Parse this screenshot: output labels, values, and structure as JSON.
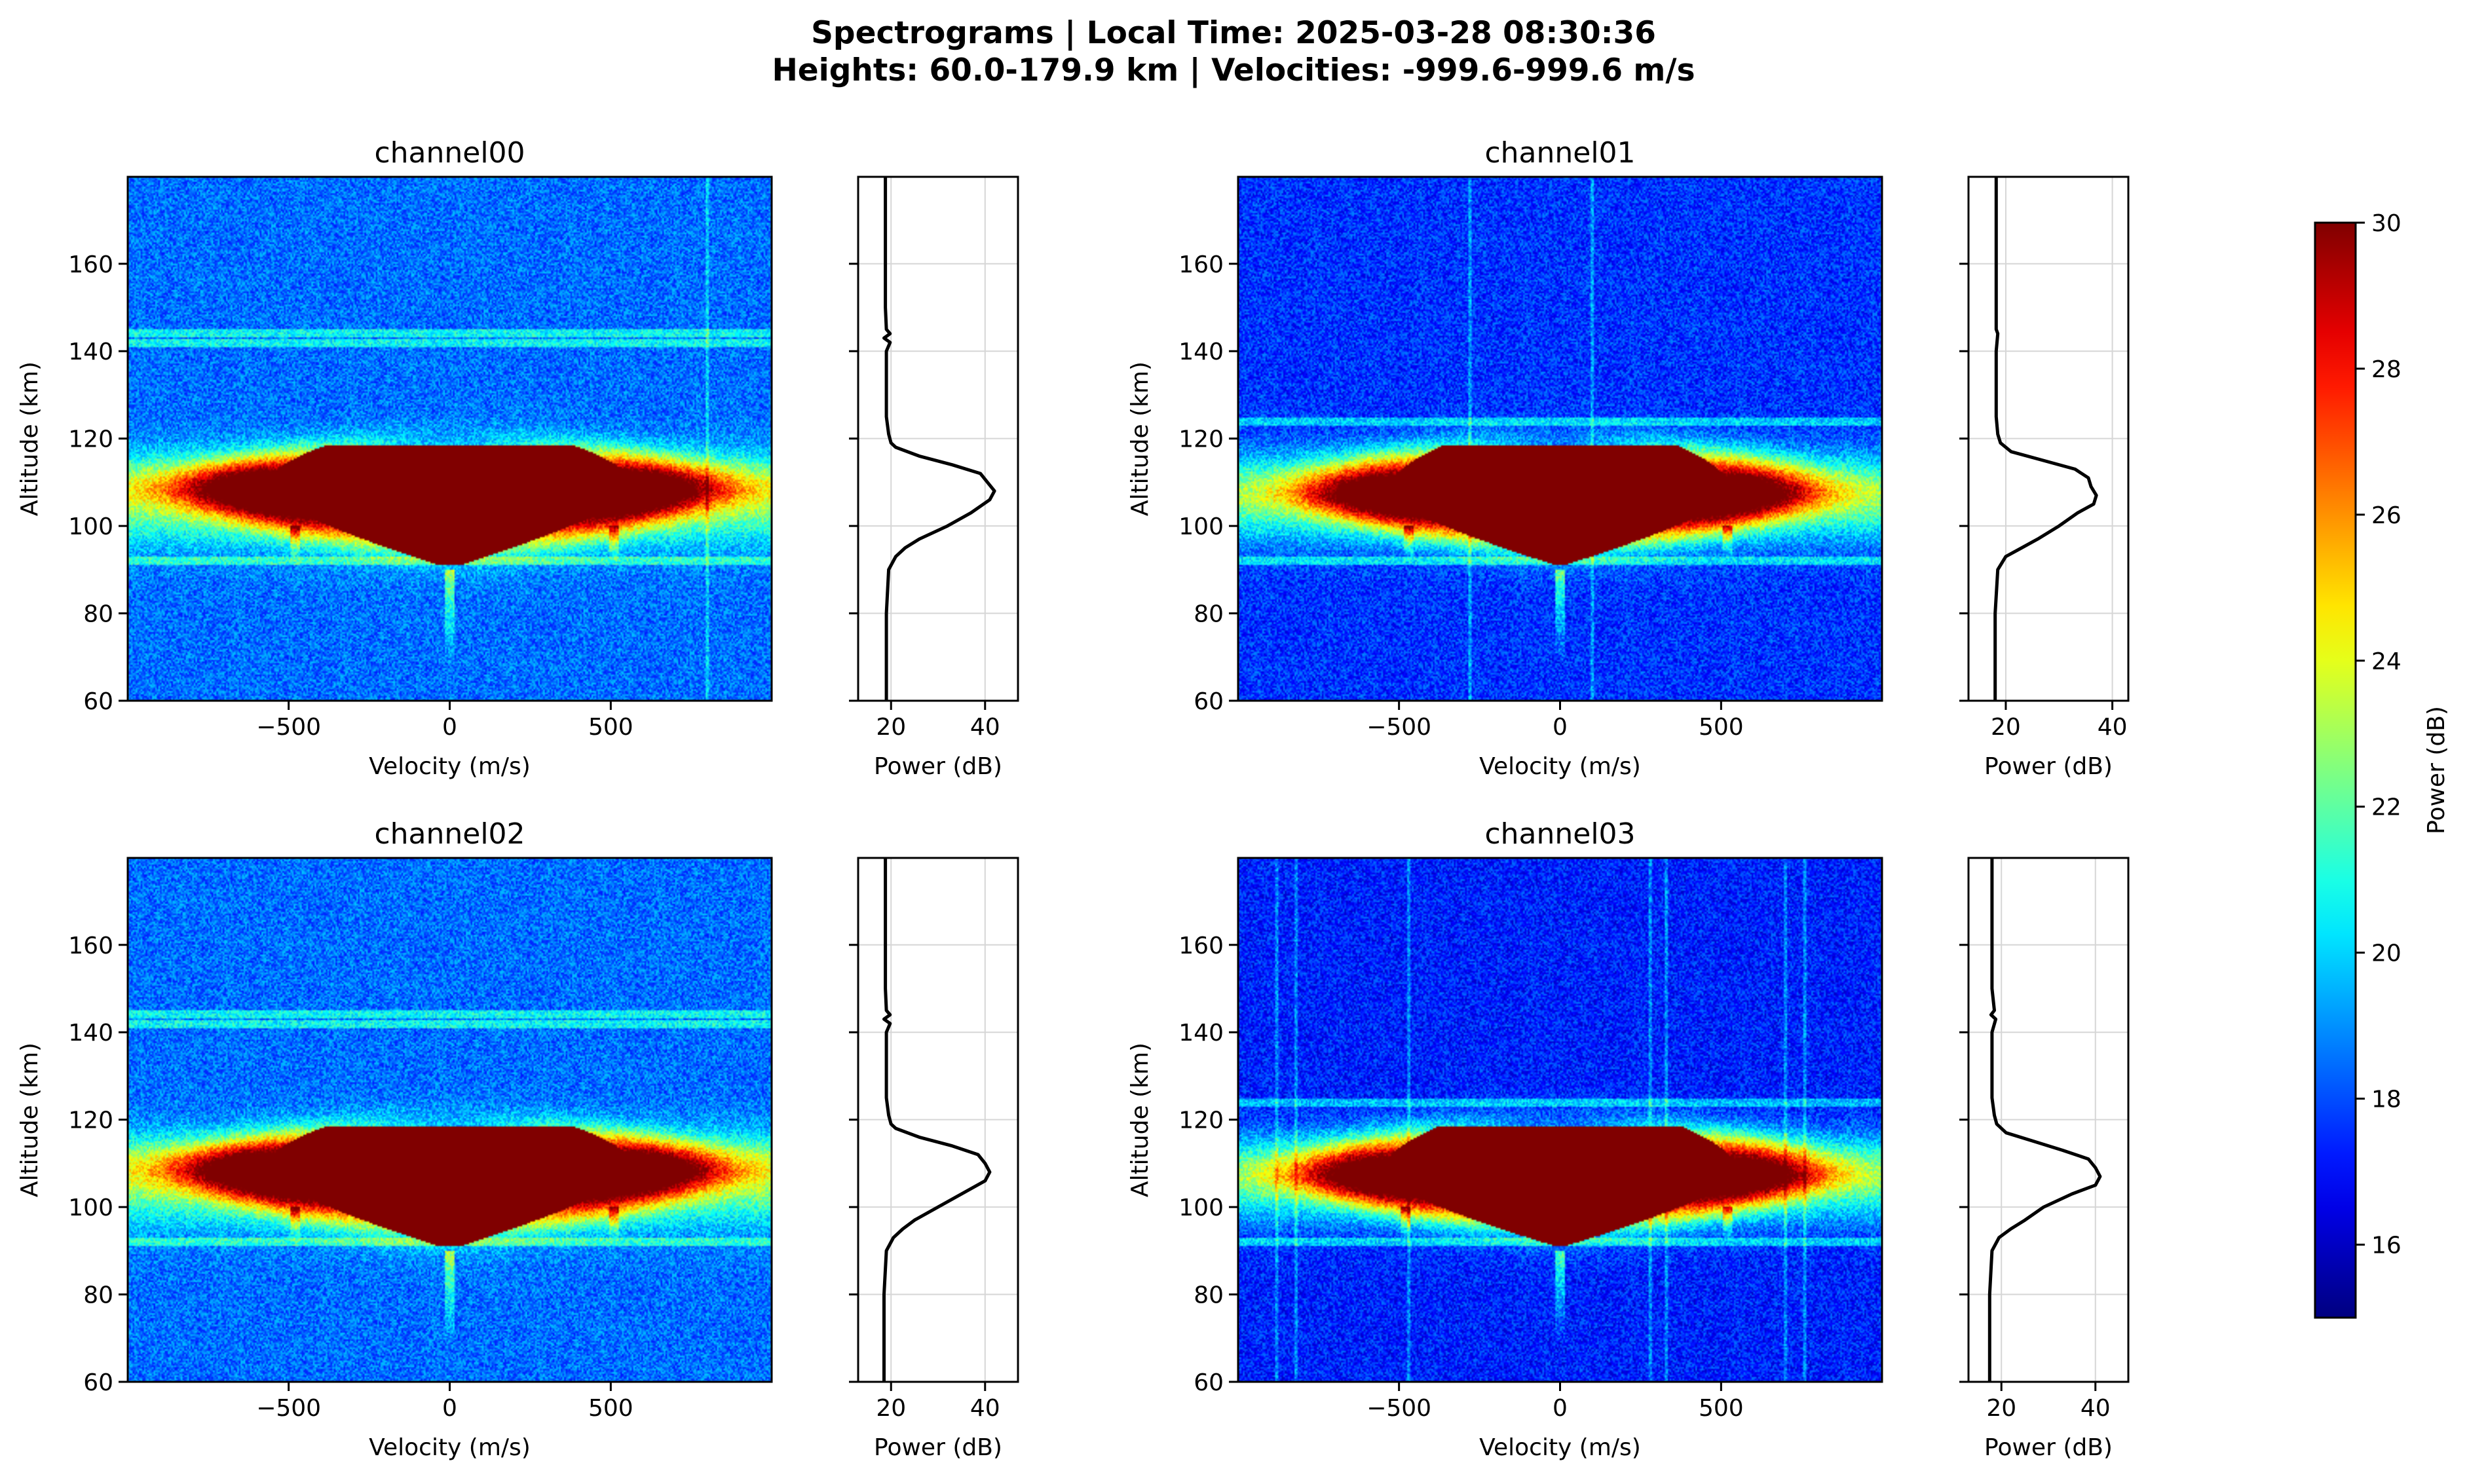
{
  "figure": {
    "title_line1": "Spectrograms | Local Time: 2025-03-28 08:30:36",
    "title_line2": "Heights: 60.0-179.9 km | Velocities: -999.6-999.6 m/s"
  },
  "chart_data": [
    {
      "type": "heatmap",
      "title": "channel00",
      "xlabel": "Velocity (m/s)",
      "ylabel": "Altitude (km)",
      "xlim": [
        -999.6,
        999.6
      ],
      "ylim": [
        60.0,
        179.9
      ],
      "xticks": [
        -500,
        0,
        500
      ],
      "yticks": [
        60,
        80,
        100,
        120,
        140,
        160
      ],
      "colormap": "jet",
      "background_level_db": 18.5,
      "layer": {
        "bottom_km": 96,
        "top_km": 117,
        "peak_km": 108,
        "saturated_velocity_range": [
          -580,
          580
        ]
      },
      "spikes_km": [
        {
          "velocity": -480,
          "from_km": 100,
          "to_km": 92
        },
        {
          "velocity": 0,
          "from_km": 90,
          "to_km": 69
        },
        {
          "velocity": 510,
          "from_km": 100,
          "to_km": 92
        }
      ],
      "stripes_velocity": [
        800
      ],
      "bands_km": [
        144,
        142,
        92
      ],
      "profile": {
        "xlabel": "Power (dB)",
        "xlim": [
          13,
          47
        ],
        "xticks": [
          20,
          40
        ],
        "altitude_km": [
          60,
          80,
          90,
          93,
          95,
          97,
          100,
          103,
          106,
          108,
          110,
          112,
          114,
          116,
          118,
          119,
          121,
          125,
          130,
          140,
          142,
          143,
          144,
          145,
          150,
          160,
          179.9
        ],
        "power_db": [
          19,
          19,
          19.5,
          21,
          23,
          26,
          32,
          37,
          41,
          42,
          40.5,
          39,
          33,
          26,
          21,
          20,
          19.5,
          19,
          19,
          19,
          19.8,
          18.5,
          19.8,
          19,
          18.8,
          18.8,
          18.8
        ]
      }
    },
    {
      "type": "heatmap",
      "title": "channel01",
      "xlabel": "Velocity (m/s)",
      "ylabel": "Altitude (km)",
      "xlim": [
        -999.6,
        999.6
      ],
      "ylim": [
        60.0,
        179.9
      ],
      "xticks": [
        -500,
        0,
        500
      ],
      "yticks": [
        60,
        80,
        100,
        120,
        140,
        160
      ],
      "colormap": "jet",
      "background_level_db": 17.6,
      "layer": {
        "bottom_km": 96,
        "top_km": 117,
        "peak_km": 107,
        "saturated_velocity_range": [
          -540,
          540
        ]
      },
      "spikes_km": [
        {
          "velocity": -470,
          "from_km": 100,
          "to_km": 93
        },
        {
          "velocity": 0,
          "from_km": 90,
          "to_km": 69
        },
        {
          "velocity": 520,
          "from_km": 100,
          "to_km": 93
        }
      ],
      "stripes_velocity": [
        -280,
        100
      ],
      "bands_km": [
        124,
        92
      ],
      "profile": {
        "xlabel": "Power (dB)",
        "xlim": [
          13,
          43
        ],
        "xticks": [
          20,
          40
        ],
        "altitude_km": [
          60,
          80,
          90,
          93,
          95,
          97,
          100,
          103,
          105,
          107,
          109,
          111,
          113,
          115,
          117,
          119,
          121,
          125,
          130,
          140,
          144,
          145,
          150,
          160,
          179.9
        ],
        "power_db": [
          18,
          18,
          18.5,
          20,
          23,
          26,
          30,
          33.5,
          36.5,
          37,
          36,
          35.5,
          33,
          27,
          21,
          19,
          18.5,
          18.2,
          18.2,
          18.2,
          18.5,
          18.2,
          18.2,
          18.2,
          18.2
        ]
      }
    },
    {
      "type": "heatmap",
      "title": "channel02",
      "xlabel": "Velocity (m/s)",
      "ylabel": "Altitude (km)",
      "xlim": [
        -999.6,
        999.6
      ],
      "ylim": [
        60.0,
        179.9
      ],
      "xticks": [
        -500,
        0,
        500
      ],
      "yticks": [
        60,
        80,
        100,
        120,
        140,
        160
      ],
      "colormap": "jet",
      "background_level_db": 18.5,
      "layer": {
        "bottom_km": 96,
        "top_km": 117,
        "peak_km": 108,
        "saturated_velocity_range": [
          -580,
          580
        ]
      },
      "spikes_km": [
        {
          "velocity": -480,
          "from_km": 100,
          "to_km": 92
        },
        {
          "velocity": 0,
          "from_km": 90,
          "to_km": 69
        },
        {
          "velocity": 510,
          "from_km": 100,
          "to_km": 92
        }
      ],
      "stripes_velocity": [],
      "bands_km": [
        144,
        142,
        92
      ],
      "profile": {
        "xlabel": "Power (dB)",
        "xlim": [
          13,
          47
        ],
        "xticks": [
          20,
          40
        ],
        "altitude_km": [
          60,
          80,
          90,
          93,
          95,
          97,
          100,
          103,
          106,
          108,
          110,
          112,
          114,
          116,
          118,
          119,
          121,
          125,
          130,
          140,
          142,
          143,
          144,
          145,
          150,
          160,
          179.9
        ],
        "power_db": [
          18.5,
          18.5,
          19,
          20.5,
          22.5,
          25,
          30,
          35,
          40,
          41,
          40,
          38.5,
          33,
          26,
          21,
          20,
          19.5,
          19,
          19,
          19,
          19.8,
          18.5,
          19.8,
          19,
          18.8,
          18.8,
          18.8
        ]
      }
    },
    {
      "type": "heatmap",
      "title": "channel03",
      "xlabel": "Velocity (m/s)",
      "ylabel": "Altitude (km)",
      "xlim": [
        -999.6,
        999.6
      ],
      "ylim": [
        60.0,
        179.9
      ],
      "xticks": [
        -500,
        0,
        500
      ],
      "yticks": [
        60,
        80,
        100,
        120,
        140,
        160
      ],
      "colormap": "jet",
      "background_level_db": 17.3,
      "layer": {
        "bottom_km": 96,
        "top_km": 117,
        "peak_km": 107,
        "saturated_velocity_range": [
          -560,
          560
        ]
      },
      "spikes_km": [
        {
          "velocity": -480,
          "from_km": 100,
          "to_km": 93
        },
        {
          "velocity": 0,
          "from_km": 90,
          "to_km": 69
        },
        {
          "velocity": 520,
          "from_km": 100,
          "to_km": 93
        }
      ],
      "stripes_velocity": [
        -880,
        -820,
        -470,
        280,
        330,
        700,
        760
      ],
      "bands_km": [
        124,
        92
      ],
      "profile": {
        "xlabel": "Power (dB)",
        "xlim": [
          13,
          47
        ],
        "xticks": [
          20,
          40
        ],
        "altitude_km": [
          60,
          80,
          90,
          93,
          95,
          97,
          100,
          103,
          105,
          107,
          109,
          111,
          113,
          115,
          117,
          119,
          121,
          125,
          130,
          140,
          143,
          144,
          145,
          150,
          160,
          179.9
        ],
        "power_db": [
          17.5,
          17.5,
          18,
          19.5,
          22,
          25,
          29,
          35,
          40,
          41,
          40,
          38.5,
          33,
          27,
          21,
          19,
          18.5,
          18,
          18,
          18,
          18.8,
          17.8,
          18.5,
          18,
          18,
          18
        ]
      }
    }
  ],
  "colorbar": {
    "label": "Power (dB)",
    "vmin": 15,
    "vmax": 30,
    "ticks": [
      16,
      18,
      20,
      22,
      24,
      26,
      28,
      30
    ],
    "colormap": "jet"
  }
}
